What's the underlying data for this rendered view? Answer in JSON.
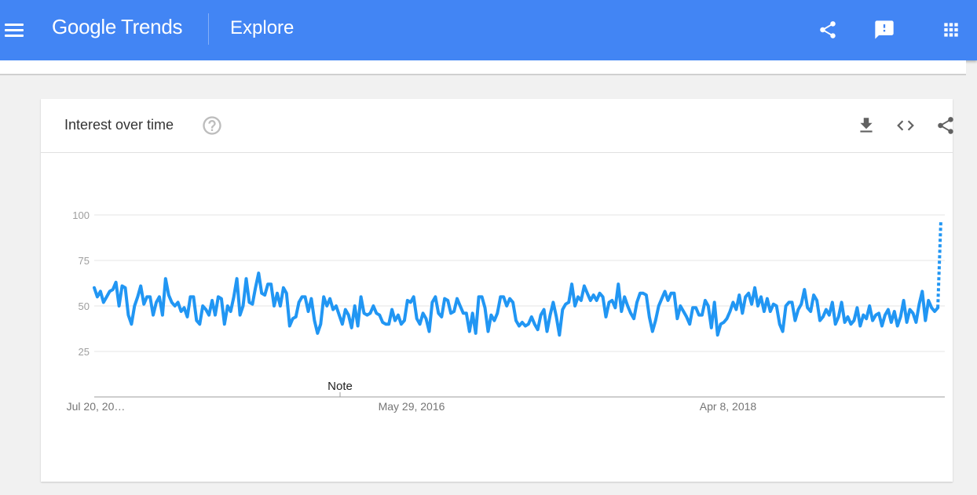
{
  "header": {
    "logo_part1": "Google",
    "logo_part2": "Trends",
    "page_title": "Explore",
    "bar_color": "#4285f4"
  },
  "card": {
    "title": "Interest over time"
  },
  "icons": {
    "menu": "menu-icon",
    "share_top": "share-icon",
    "feedback": "feedback-icon",
    "apps": "apps-grid-icon",
    "help": "help-icon",
    "download": "download-icon",
    "embed": "embed-code-icon",
    "share_card": "share-icon"
  },
  "chart_data": {
    "type": "line",
    "title": "",
    "xlabel": "",
    "ylabel": "",
    "ylim": [
      0,
      100
    ],
    "yticks": [
      25,
      50,
      75,
      100
    ],
    "xticks": [
      "Jul 20, 20…",
      "May 29, 2016",
      "Apr 8, 2018"
    ],
    "note_label": "Note",
    "line_color": "#2196f3",
    "grid": true,
    "partial_last_point": true,
    "values": [
      60,
      55,
      58,
      52,
      55,
      58,
      59,
      63,
      50,
      61,
      60,
      45,
      40,
      50,
      55,
      61,
      51,
      55,
      55,
      45,
      52,
      55,
      45,
      65,
      56,
      52,
      50,
      52,
      47,
      49,
      44,
      55,
      55,
      42,
      40,
      50,
      48,
      45,
      53,
      45,
      55,
      54,
      40,
      50,
      47,
      55,
      65,
      45,
      50,
      65,
      52,
      51,
      60,
      68,
      57,
      56,
      62,
      62,
      50,
      57,
      50,
      60,
      57,
      39,
      43,
      44,
      52,
      55,
      55,
      47,
      54,
      42,
      35,
      40,
      55,
      50,
      54,
      48,
      50,
      45,
      40,
      48,
      45,
      38,
      50,
      39,
      55,
      46,
      45,
      46,
      50,
      46,
      45,
      41,
      40,
      40,
      48,
      42,
      45,
      40,
      42,
      53,
      52,
      55,
      43,
      40,
      46,
      43,
      36,
      52,
      55,
      46,
      44,
      54,
      53,
      46,
      47,
      54,
      50,
      46,
      46,
      36,
      46,
      35,
      55,
      55,
      49,
      36,
      45,
      42,
      46,
      55,
      55,
      50,
      54,
      52,
      42,
      39,
      41,
      39,
      40,
      44,
      40,
      37,
      45,
      48,
      36,
      45,
      52,
      44,
      34,
      48,
      51,
      52,
      62,
      50,
      55,
      53,
      61,
      57,
      53,
      56,
      53,
      57,
      55,
      44,
      52,
      53,
      49,
      62,
      47,
      55,
      50,
      46,
      43,
      52,
      57,
      57,
      56,
      44,
      36,
      42,
      50,
      54,
      58,
      53,
      57,
      57,
      43,
      50,
      47,
      44,
      40,
      49,
      49,
      45,
      45,
      53,
      50,
      38,
      52,
      34,
      40,
      41,
      43,
      47,
      52,
      48,
      56,
      46,
      55,
      57,
      51,
      60,
      50,
      55,
      47,
      54,
      47,
      51,
      50,
      40,
      36,
      50,
      52,
      52,
      42,
      48,
      51,
      59,
      49,
      47,
      56,
      53,
      42,
      44,
      48,
      45,
      52,
      40,
      44,
      52,
      41,
      44,
      40,
      42,
      49,
      39,
      45,
      43,
      50,
      42,
      45,
      46,
      39,
      45,
      48,
      41,
      47,
      39,
      44,
      53,
      41,
      48,
      46,
      41,
      51,
      58,
      42,
      53,
      49,
      47,
      49,
      97
    ]
  }
}
